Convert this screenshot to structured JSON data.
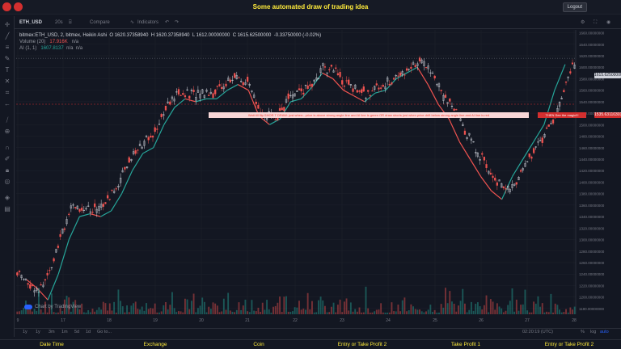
{
  "header": {
    "title": "Some automated draw of trading idea",
    "logout_label": "Logout"
  },
  "toolbar": {
    "symbol": "ETH_USD",
    "interval": "20s",
    "compare_label": "Compare",
    "indicators_label": "Indicators"
  },
  "legend": {
    "symbol_line": "bitmex:ETH_USD, 2, bitmex, Heikin Ashi",
    "open": "O 1620.37358940",
    "high": "H 1620.37358940",
    "low": "L 1612.00000000",
    "close": "C 1615.62500000",
    "change": "-0.33750000 (-0.02%)",
    "volume_label": "Volume (20)",
    "volume_value": "17.916K",
    "volume_na": "n/a",
    "ai_label": "AI (1, 1)",
    "ai_value": "1607.8137",
    "ai_na1": "n/a",
    "ai_na2": "n/a"
  },
  "annotations": {
    "banner_main": "Wait till flip SHOR T   DRAW: just when:- price is above strong angle line and AI line is green       OR       draw shorts just when price drift below strong angle line and AI line is red",
    "banner_end": "THEN See the magic!!!"
  },
  "price_axis": {
    "ticks": [
      "1660.00000000",
      "1640.00000000",
      "1620.00000000",
      "1600.00000000",
      "1580.00000000",
      "1560.00000000",
      "1540.00000000",
      "1520.00000000",
      "1500.00000000",
      "1480.00000000",
      "1460.00000000",
      "1440.00000000",
      "1420.00000000",
      "1400.00000000",
      "1380.00000000",
      "1360.00000000",
      "1340.00000000",
      "1320.00000000",
      "1300.00000000",
      "1280.00000000",
      "1260.00000000",
      "1240.00000000",
      "1220.00000000",
      "1200.00000000",
      "1180.00000000"
    ],
    "last_price": "1615.62500000",
    "marker_price": "1535.63110301"
  },
  "time_axis": {
    "labels": [
      "9",
      "17",
      "18",
      "19",
      "20",
      "21",
      "22",
      "23",
      "24",
      "25",
      "26",
      "27",
      "28"
    ]
  },
  "watermark": "Chart by TradingView",
  "range": {
    "buttons": [
      "1y",
      "1y",
      "3m",
      "1m",
      "5d",
      "1d",
      "Go to..."
    ],
    "clock": "02:20:19 (UTC)",
    "pct": "%",
    "log": "log",
    "auto": "auto"
  },
  "footer": {
    "cols": [
      "Date Time",
      "Exchange",
      "Coin",
      "Entry or Take Profit 2",
      "Take Profit 1",
      "Entry or Take Profit 2"
    ]
  },
  "chart_data": {
    "type": "candlestick",
    "style": "Heikin Ashi",
    "ylim": [
      1170,
      1665
    ],
    "series": [
      {
        "name": "AI",
        "values": [
          1230,
          1215,
          1195,
          1240,
          1300,
          1340,
          1345,
          1340,
          1350,
          1380,
          1420,
          1450,
          1460,
          1500,
          1530,
          1545,
          1540,
          1545,
          1545,
          1560,
          1570,
          1560,
          1515,
          1500,
          1510,
          1540,
          1545,
          1565,
          1590,
          1580,
          1560,
          1550,
          1540,
          1555,
          1560,
          1580,
          1590,
          1600,
          1570,
          1535,
          1510,
          1470,
          1440,
          1410,
          1385,
          1370,
          1410,
          1440,
          1470,
          1500,
          1560,
          1605
        ]
      }
    ],
    "colors": {
      "up": "#d1d4dc",
      "down": "#ef5350",
      "ai_up": "#26a69a",
      "ai_down": "#ef5350"
    }
  }
}
